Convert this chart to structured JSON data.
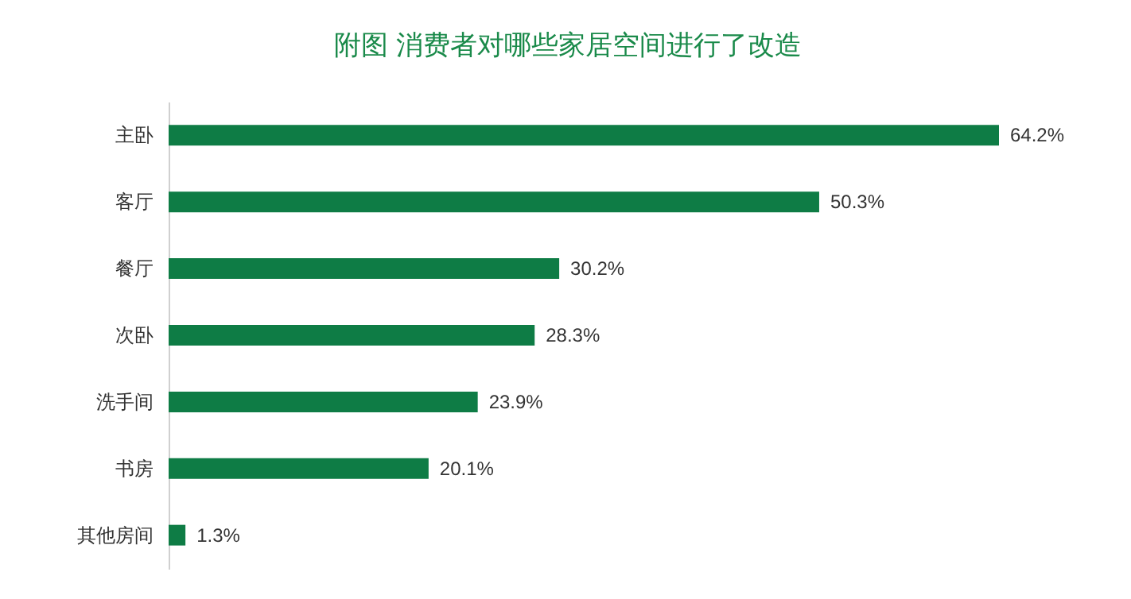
{
  "chart_data": {
    "type": "bar",
    "orientation": "horizontal",
    "title": "附图 消费者对哪些家居空间进行了改造",
    "categories": [
      "主卧",
      "客厅",
      "餐厅",
      "次卧",
      "洗手间",
      "书房",
      "其他房间"
    ],
    "values": [
      64.2,
      50.3,
      30.2,
      28.3,
      23.9,
      20.1,
      1.3
    ],
    "value_labels": [
      "64.2%",
      "50.3%",
      "30.2%",
      "28.3%",
      "23.9%",
      "20.1%",
      "1.3%"
    ],
    "color": "#0e7c45"
  }
}
